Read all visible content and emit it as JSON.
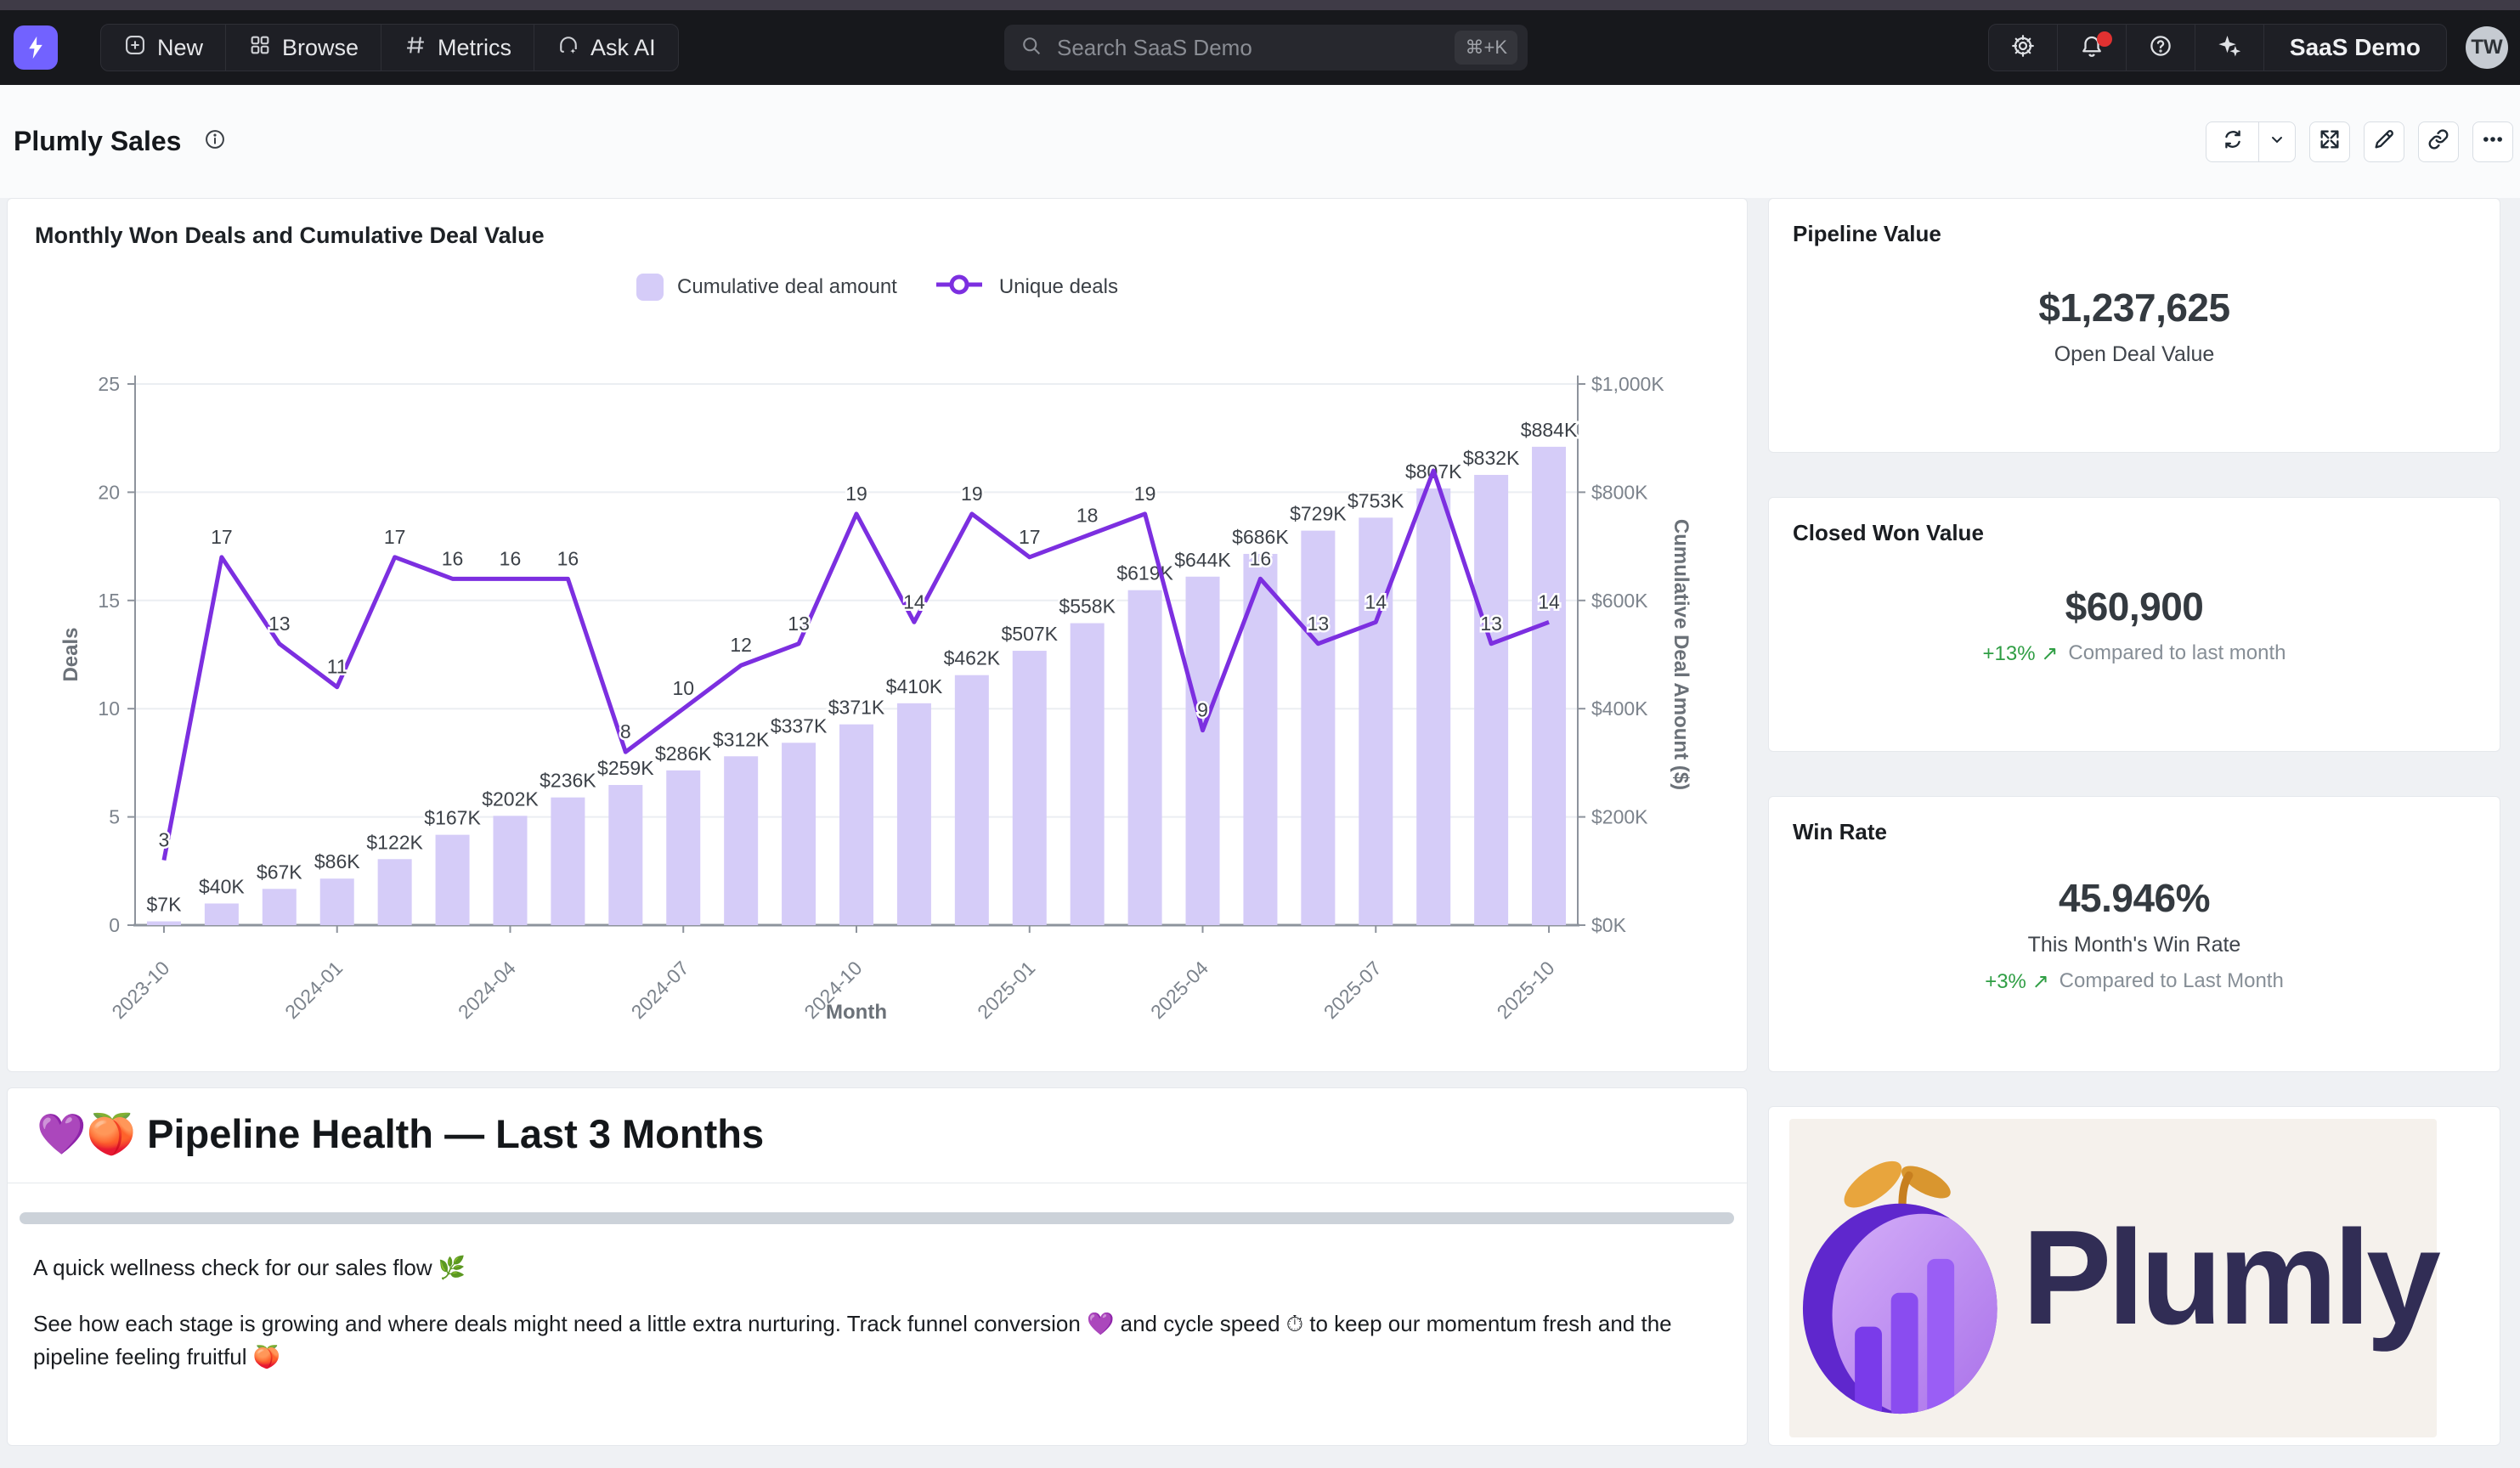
{
  "colors": {
    "accent_purple": "#7262ff",
    "bar": "#d5ccf8",
    "line": "#7c2fe0",
    "positive_green": "#2f9e44",
    "notification_red": "#e03131"
  },
  "topbar": {
    "brand_icon": "lightning-bolt-icon",
    "nav": [
      {
        "label": "New",
        "icon": "plus-square-icon"
      },
      {
        "label": "Browse",
        "icon": "grid-icon"
      },
      {
        "label": "Metrics",
        "icon": "hash-icon"
      },
      {
        "label": "Ask AI",
        "icon": "headset-sparkle-icon"
      }
    ],
    "search": {
      "placeholder": "Search SaaS Demo",
      "shortcut": "⌘+K",
      "icon": "search-icon"
    },
    "action_icons": [
      "gear-icon",
      "bell-icon",
      "help-icon",
      "sparkles-icon"
    ],
    "org_label": "SaaS Demo",
    "avatar_initials": "TW"
  },
  "header": {
    "title": "Plumly Sales",
    "toolbar_icons": [
      "refresh-icon",
      "chevron-down-icon",
      "fullscreen-icon",
      "pencil-icon",
      "link-icon",
      "ellipsis-icon"
    ]
  },
  "chart_card": {
    "title": "Monthly Won Deals and Cumulative Deal Value",
    "legend": [
      {
        "label": "Cumulative deal amount",
        "marker": "bar-swatch"
      },
      {
        "label": "Unique deals",
        "marker": "line-circle"
      }
    ]
  },
  "chart_data": {
    "type": "bar+line",
    "x": [
      "2023-10",
      "2023-11",
      "2023-12",
      "2024-01",
      "2024-02",
      "2024-03",
      "2024-04",
      "2024-05",
      "2024-06",
      "2024-07",
      "2024-08",
      "2024-09",
      "2024-10",
      "2024-11",
      "2024-12",
      "2025-01",
      "2025-02",
      "2025-03",
      "2025-04",
      "2025-05",
      "2025-06",
      "2025-07",
      "2025-08",
      "2025-09",
      "2025-10"
    ],
    "x_ticks_shown": [
      "2023-10",
      "2024-01",
      "2024-04",
      "2024-07",
      "2024-10",
      "2025-01",
      "2025-04",
      "2025-07",
      "2025-10"
    ],
    "series": [
      {
        "name": "Cumulative deal amount",
        "type": "bar",
        "axis": "right",
        "values_k": [
          7,
          40,
          67,
          86,
          122,
          167,
          202,
          236,
          259,
          286,
          312,
          337,
          371,
          410,
          462,
          507,
          558,
          619,
          644,
          686,
          729,
          753,
          807,
          832,
          884
        ],
        "labels": [
          "$7K",
          "$40K",
          "$67K",
          "$86K",
          "$122K",
          "$167K",
          "$202K",
          "$236K",
          "$259K",
          "$286K",
          "$312K",
          "$337K",
          "$371K",
          "$410K",
          "$462K",
          "$507K",
          "$558K",
          "$619K",
          "$644K",
          "$686K",
          "$729K",
          "$753K",
          "$807K",
          "$832K",
          "$884K"
        ]
      },
      {
        "name": "Unique deals",
        "type": "line",
        "axis": "left",
        "values": [
          3,
          17,
          13,
          11,
          17,
          16,
          16,
          16,
          8,
          10,
          12,
          13,
          19,
          14,
          19,
          17,
          18,
          19,
          9,
          16,
          13,
          14,
          21,
          13,
          14
        ],
        "hidden_label_indices": [
          22
        ]
      }
    ],
    "left_axis": {
      "label": "Deals",
      "ticks": [
        0,
        5,
        10,
        15,
        20,
        25
      ],
      "range": [
        0,
        25
      ]
    },
    "right_axis": {
      "label": "Cumulative Deal Amount ($)",
      "ticks": [
        "$0K",
        "$200K",
        "$400K",
        "$600K",
        "$800K",
        "$1,000K"
      ],
      "range_k": [
        0,
        1000
      ]
    },
    "x_axis_label": "Month",
    "grid": true,
    "legend_position": "top"
  },
  "kpis": [
    {
      "title": "Pipeline Value",
      "value": "$1,237,625",
      "subtitle": "Open Deal Value"
    },
    {
      "title": "Closed Won Value",
      "value": "$60,900",
      "delta": "+13%",
      "delta_arrow": "↗",
      "comparison": "Compared to last month"
    },
    {
      "title": "Win Rate",
      "value": "45.946%",
      "subtitle": "This Month's Win Rate",
      "delta": "+3%",
      "delta_arrow": "↗",
      "comparison": "Compared to Last Month"
    }
  ],
  "markdown_tile": {
    "heading": "💜🍑 Pipeline Health — Last 3 Months",
    "p1": "A quick wellness check for our sales flow 🌿",
    "p2": "See how each stage is growing and where deals might need a little extra nurturing. Track funnel conversion 💜 and cycle speed ⏱ to keep our momentum fresh and the pipeline feeling fruitful 🍑"
  },
  "logo_card": {
    "brand": "Plumly",
    "icon": "plum-chart-logo"
  }
}
